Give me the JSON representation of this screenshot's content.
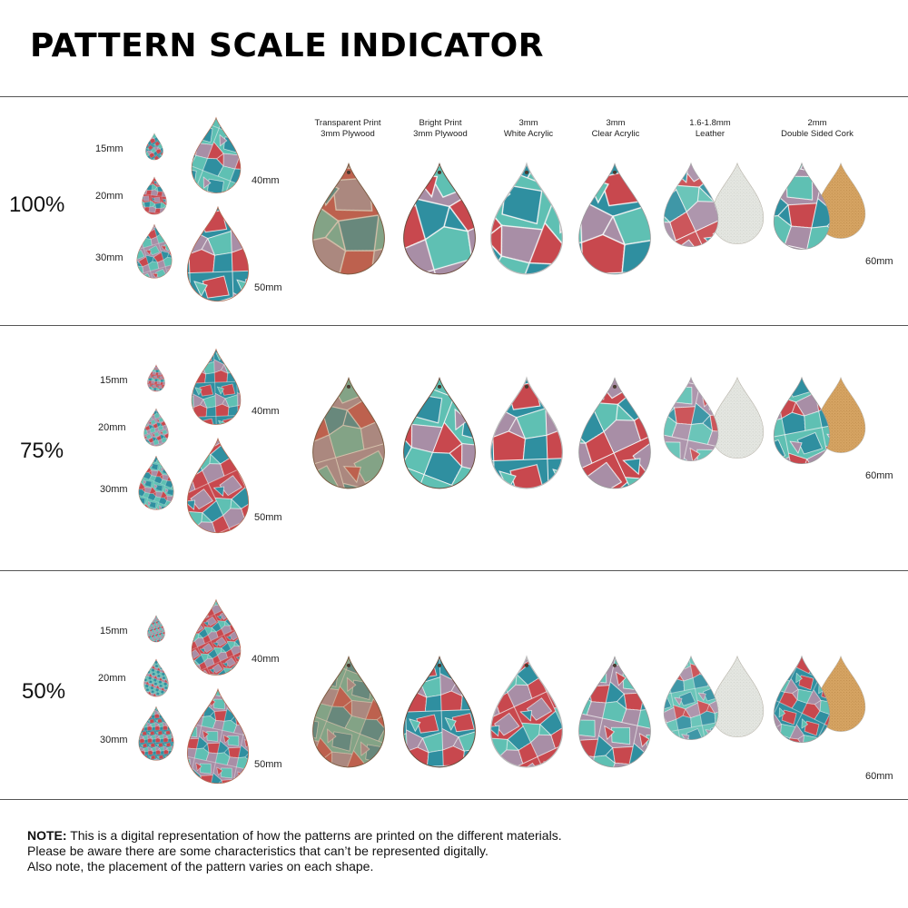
{
  "title": "PATTERN SCALE INDICATOR",
  "materials": [
    {
      "line1": "Transparent Print",
      "line2": "3mm Plywood",
      "type": "transparent-plywood"
    },
    {
      "line1": "Bright Print",
      "line2": "3mm Plywood",
      "type": "bright-plywood"
    },
    {
      "line1": "3mm",
      "line2": "White Acrylic",
      "type": "white-acrylic"
    },
    {
      "line1": "3mm",
      "line2": "Clear Acrylic",
      "type": "clear-acrylic"
    },
    {
      "line1": "1.6-1.8mm",
      "line2": "Leather",
      "type": "leather"
    },
    {
      "line1": "2mm",
      "line2": "Double Sided Cork",
      "type": "cork"
    }
  ],
  "sizes": [
    "15mm",
    "20mm",
    "30mm",
    "40mm",
    "50mm"
  ],
  "large_size": "60mm",
  "scales": [
    {
      "label": "100%"
    },
    {
      "label": "75%"
    },
    {
      "label": "50%"
    }
  ],
  "colors": {
    "teal": "#2f8fa0",
    "red": "#c8484e",
    "mauve": "#a88ea6",
    "mint": "#5fc0b3",
    "cork": "#d6a463",
    "suede": "#e4e6e1"
  },
  "note": {
    "bold": "NOTE:",
    "line1": " This is a digital representation of how the patterns are printed on the different materials.",
    "line2": "Please be aware there are some characteristics that can’t be represented digitally.",
    "line3": "Also note, the placement of the pattern varies on each shape."
  }
}
